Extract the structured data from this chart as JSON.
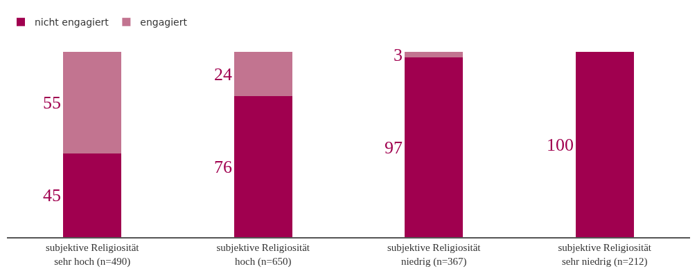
{
  "chart_data": {
    "type": "bar",
    "stacked": true,
    "data_labels": true,
    "legend": "top left",
    "categories": [
      "subjektive Religiosität\nsehr hoch (n=490)",
      "subjektive Religiosität\nhoch (n=650)",
      "subjektive Religiosität\nniedrig (n=367)",
      "subjektive Religiosität\nsehr niedrig (n=212)"
    ],
    "series": [
      {
        "name": "nicht engagiert",
        "color": "#a0004f",
        "values": [
          45,
          76,
          97,
          100
        ]
      },
      {
        "name": "engagiert",
        "color": "#c27490",
        "values": [
          55,
          24,
          3,
          null
        ]
      }
    ]
  }
}
